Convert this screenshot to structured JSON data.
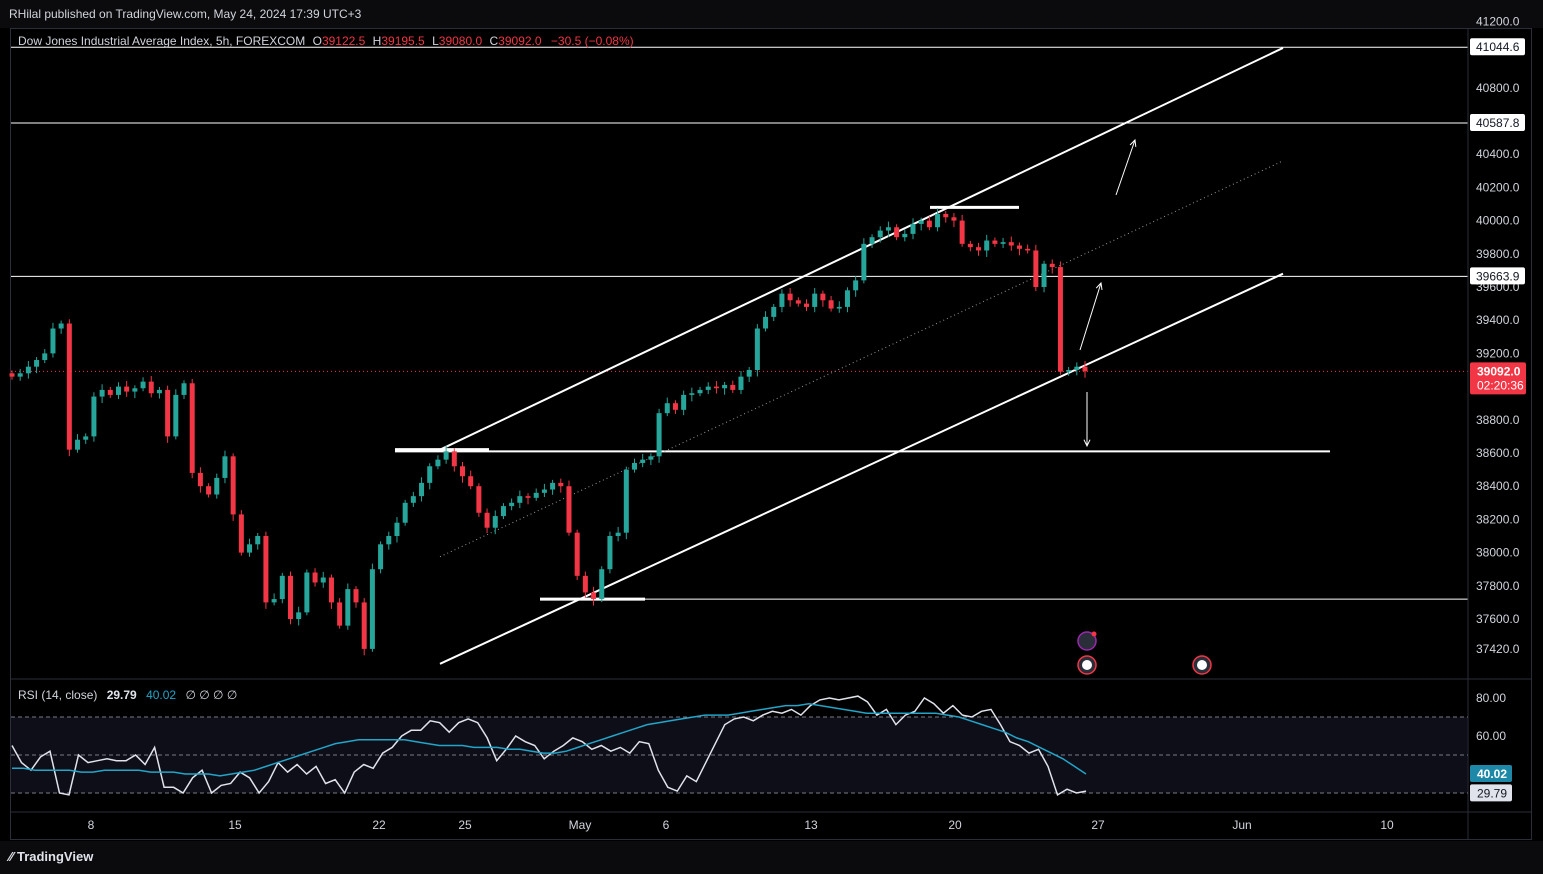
{
  "header": {
    "publisher": "RHilal published on TradingView.com, May 24, 2024 17:39 UTC+3"
  },
  "legend": {
    "symbol": "Dow Jones Industrial Average Index, 5h, FOREXCOM",
    "open_label": "O",
    "open": "39122.5",
    "high_label": "H",
    "high": "39195.5",
    "low_label": "L",
    "low": "39080.0",
    "close_label": "C",
    "close": "39092.0",
    "change": "−30.5 (−0.08%)"
  },
  "rsi_legend": {
    "name": "RSI (14, close)",
    "rsi": "29.79",
    "ma": "40.02",
    "extra": "∅ ∅ ∅ ∅"
  },
  "footer": {
    "brand": "TradingView"
  },
  "colors": {
    "up": "#26a69a",
    "down": "#f23645",
    "rsi": "#e0e3eb",
    "rsi_ma": "#22a5c8",
    "grid": "#2a2e39"
  },
  "chart_data": {
    "type": "candlestick",
    "price_axis": {
      "ticks": [
        "41200.0",
        "40800.0",
        "40400.0",
        "40200.0",
        "40000.0",
        "39800.0",
        "39600.0",
        "39400.0",
        "39200.0",
        "38800.0",
        "38600.0",
        "38400.0",
        "38200.0",
        "38000.0",
        "37800.0",
        "37600.0",
        "37420.0"
      ],
      "ylim": [
        37330,
        41200
      ]
    },
    "time_axis": {
      "labels": [
        "8",
        "15",
        "22",
        "25",
        "May",
        "6",
        "13",
        "20",
        "27",
        "Jun",
        "10"
      ]
    },
    "price_labels": {
      "last_price": "39092.0",
      "countdown": "02:20:36",
      "levels": [
        "41044.6",
        "40587.8",
        "39663.9"
      ]
    },
    "last_price": 39092,
    "horizontal_levels": [
      41044.6,
      40587.8,
      39663.9,
      38610,
      37720
    ],
    "channel": {
      "upper": [
        [
          0,
          38620
        ],
        [
          1.0,
          41040
        ]
      ],
      "lower": [
        [
          0,
          37330
        ],
        [
          1.0,
          39680
        ]
      ]
    },
    "close_path": [
      39060,
      39080,
      39120,
      39160,
      39200,
      39350,
      39380,
      38620,
      38680,
      38700,
      38940,
      38980,
      38950,
      39000,
      38970,
      38990,
      39030,
      38960,
      38980,
      38700,
      38950,
      39020,
      38480,
      38400,
      38350,
      38450,
      38580,
      38230,
      38000,
      38050,
      38100,
      37700,
      37720,
      37860,
      37600,
      37640,
      37880,
      37820,
      37850,
      37700,
      37560,
      37780,
      37700,
      37420,
      37900,
      38050,
      38100,
      38180,
      38300,
      38340,
      38420,
      38520,
      38560,
      38610,
      38520,
      38460,
      38400,
      38240,
      38150,
      38220,
      38280,
      38300,
      38340,
      38330,
      38360,
      38380,
      38420,
      38400,
      38120,
      37860,
      37760,
      37720,
      37900,
      38100,
      38120,
      38500,
      38540,
      38560,
      38580,
      38840,
      38900,
      38860,
      38950,
      38960,
      38980,
      39000,
      38990,
      39010,
      38980,
      39060,
      39100,
      39350,
      39420,
      39480,
      39560,
      39520,
      39500,
      39480,
      39560,
      39520,
      39470,
      39480,
      39580,
      39640,
      39860,
      39900,
      39940,
      39960,
      39900,
      39920,
      39980,
      40000,
      39960,
      40040,
      40020,
      40000,
      39860,
      39840,
      39820,
      39880,
      39860,
      39870,
      39850,
      39830,
      39820,
      39600,
      39740,
      39720,
      39090,
      39100,
      39120,
      39092
    ],
    "rsi": {
      "ylim": [
        20,
        85
      ],
      "ticks": [
        "80.00",
        "60.00"
      ],
      "bands": [
        70,
        50,
        30
      ],
      "values": [
        55,
        46,
        42,
        49,
        52,
        30,
        29,
        50,
        46,
        47,
        48,
        47,
        47,
        50,
        45,
        54,
        33,
        33,
        30,
        38,
        42,
        30,
        34,
        35,
        41,
        38,
        30,
        36,
        46,
        41,
        45,
        40,
        44,
        35,
        37,
        30,
        41,
        45,
        43,
        51,
        54,
        60,
        63,
        63,
        68,
        67,
        62,
        67,
        69,
        67,
        59,
        47,
        53,
        60,
        57,
        55,
        48,
        52,
        55,
        59,
        57,
        53,
        55,
        52,
        54,
        51,
        57,
        56,
        42,
        33,
        31,
        39,
        36,
        46,
        56,
        66,
        69,
        70,
        68,
        71,
        73,
        72,
        74,
        71,
        76,
        79,
        80,
        79,
        80,
        81,
        78,
        71,
        74,
        66,
        71,
        73,
        80,
        77,
        72,
        76,
        71,
        70,
        73,
        74,
        66,
        57,
        55,
        51,
        53,
        44,
        29,
        32,
        30,
        31
      ],
      "ma": [
        43,
        43,
        42,
        42,
        42,
        42,
        41,
        41,
        42,
        42,
        42,
        42,
        41,
        41,
        41,
        40,
        40,
        40,
        39,
        40,
        41,
        42,
        44,
        46,
        48,
        50,
        52,
        54,
        56,
        57,
        58,
        58,
        58,
        58,
        58,
        57,
        56,
        55,
        55,
        55,
        54,
        54,
        54,
        53,
        53,
        52,
        51,
        51,
        52,
        54,
        56,
        58,
        60,
        62,
        64,
        66,
        67,
        68,
        69,
        70,
        71,
        71,
        71,
        72,
        73,
        74,
        75,
        76,
        76,
        77,
        76,
        75,
        74,
        73,
        72,
        72,
        72,
        72,
        72,
        72,
        72,
        71,
        70,
        68,
        66,
        64,
        62,
        59,
        57,
        54,
        51,
        48,
        44,
        40
      ]
    }
  }
}
